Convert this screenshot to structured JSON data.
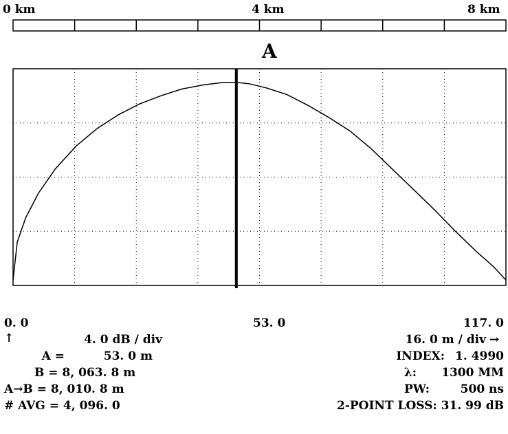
{
  "distance_scale": {
    "labels": [
      "0 km",
      "4 km",
      "8 km"
    ],
    "range_km": [
      0,
      8
    ]
  },
  "marker": {
    "label": "A"
  },
  "chart_data": {
    "type": "line",
    "title": "",
    "xlabel": "",
    "ylabel": "",
    "x_unit": "m",
    "xlim": [
      0.0,
      117.0
    ],
    "x_divisions": 8,
    "y_divisions": 4,
    "grid": true,
    "grid_style": "dotted",
    "cursor_x": 53.0,
    "series": [
      {
        "x": [
          0,
          1,
          3,
          6,
          10,
          15,
          20,
          25,
          30,
          35,
          40,
          45,
          50,
          53,
          56,
          60,
          65,
          70,
          75,
          80,
          85,
          90,
          95,
          100,
          105,
          110,
          114,
          117
        ],
        "y": [
          0.4,
          3.2,
          5.0,
          6.8,
          8.6,
          10.3,
          11.6,
          12.6,
          13.4,
          14.0,
          14.5,
          14.8,
          15.0,
          15.0,
          14.9,
          14.6,
          14.1,
          13.3,
          12.4,
          11.4,
          10.1,
          8.6,
          7.1,
          5.6,
          4.0,
          2.5,
          1.4,
          0.4
        ]
      }
    ]
  },
  "axis_values": {
    "left": "0. 0",
    "center": "53. 0",
    "right": "117. 0"
  },
  "vertical_scale": {
    "arrow": "↑",
    "value": "4. 0 dB / div"
  },
  "horizontal_scale": {
    "value": "16. 0 m / div",
    "arrow": "→"
  },
  "left_readouts": [
    {
      "label": "A =",
      "value": "53. 0 m"
    },
    {
      "label": "B =",
      "value": "8, 063. 8 m"
    },
    {
      "label": "A→B =",
      "value": "8, 010. 8 m"
    },
    {
      "label": "# AVG =",
      "value": "4, 096. 0"
    }
  ],
  "right_readouts": [
    {
      "label": "INDEX:",
      "value": "1. 4990"
    },
    {
      "label": "λ:",
      "value": "1300 MM"
    },
    {
      "label": "PW:",
      "value": "500 ns"
    },
    {
      "label": "2-POINT LOSS:",
      "value": "31. 99 dB"
    }
  ]
}
